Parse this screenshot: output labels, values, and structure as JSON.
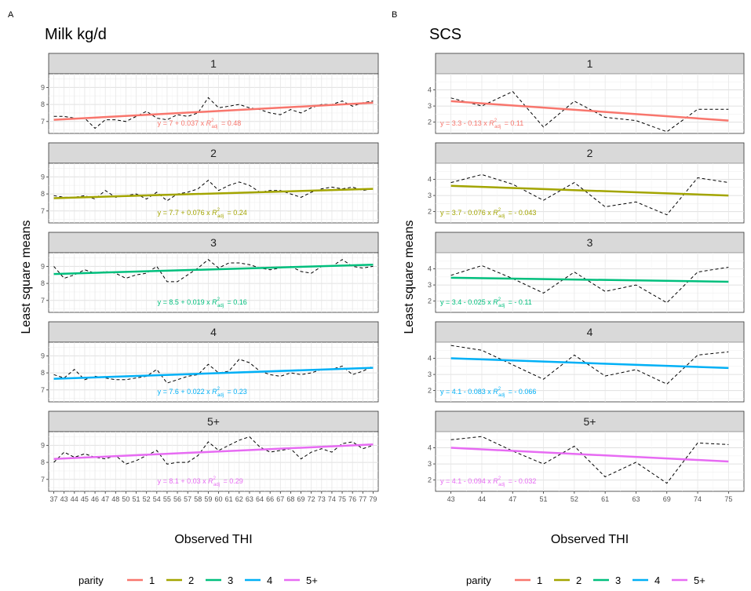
{
  "chart_data": [
    {
      "type": "line",
      "panel_label": "A",
      "title": "Milk kg/d",
      "xlabel": "Observed THI",
      "ylabel": "Least square means",
      "x_categories": [
        "37",
        "43",
        "44",
        "45",
        "46",
        "47",
        "48",
        "50",
        "51",
        "52",
        "54",
        "55",
        "56",
        "57",
        "58",
        "59",
        "60",
        "61",
        "62",
        "63",
        "64",
        "66",
        "67",
        "68",
        "69",
        "72",
        "73",
        "74",
        "75",
        "76",
        "77",
        "79"
      ],
      "yticks": [
        7,
        8,
        9
      ],
      "ylim": [
        6.3,
        9.8
      ],
      "grid": true,
      "facets": [
        {
          "strip": "1",
          "color": "#F8766D",
          "observed": [
            7.3,
            7.3,
            7.2,
            7.2,
            6.6,
            7.1,
            7.1,
            7.0,
            7.3,
            7.6,
            7.2,
            7.1,
            7.4,
            7.3,
            7.5,
            8.4,
            7.8,
            7.9,
            8.0,
            7.8,
            7.7,
            7.5,
            7.4,
            7.7,
            7.5,
            7.8,
            8.0,
            8.0,
            8.2,
            7.9,
            8.1,
            8.2
          ],
          "fit_start": 7.1,
          "fit_end": 8.1,
          "equation": "y = 7 + 0.037 x",
          "r2_label": "R",
          "r2_sub": "adj",
          "r2_sup": "2",
          "r2_value": "= 0.48"
        },
        {
          "strip": "2",
          "color": "#A3A500",
          "observed": [
            7.9,
            7.8,
            7.8,
            7.9,
            7.7,
            8.2,
            7.8,
            7.9,
            8.0,
            7.7,
            8.1,
            7.6,
            8.0,
            8.1,
            8.3,
            8.8,
            8.2,
            8.5,
            8.7,
            8.5,
            8.1,
            8.2,
            8.2,
            8.0,
            7.8,
            8.1,
            8.3,
            8.4,
            8.3,
            8.4,
            8.2,
            8.3
          ],
          "fit_start": 7.75,
          "fit_end": 8.3,
          "equation": "y = 7.7 + 0.076 x",
          "r2_label": "R",
          "r2_sub": "adj",
          "r2_sup": "2",
          "r2_value": "= 0.24"
        },
        {
          "strip": "3",
          "color": "#00BF7D",
          "observed": [
            9.0,
            8.3,
            8.5,
            8.8,
            8.6,
            8.7,
            8.6,
            8.3,
            8.5,
            8.6,
            9.0,
            8.1,
            8.1,
            8.5,
            8.9,
            9.4,
            8.9,
            9.2,
            9.2,
            9.1,
            8.9,
            8.8,
            8.9,
            9.0,
            8.7,
            8.6,
            9.0,
            9.0,
            9.4,
            9.0,
            8.9,
            9.0
          ],
          "fit_start": 8.55,
          "fit_end": 9.1,
          "equation": "y = 8.5 + 0.019 x",
          "r2_label": "R",
          "r2_sub": "adj",
          "r2_sup": "2",
          "r2_value": "= 0.16"
        },
        {
          "strip": "4",
          "color": "#00B0F6",
          "observed": [
            7.9,
            7.7,
            8.2,
            7.6,
            7.8,
            7.7,
            7.6,
            7.6,
            7.7,
            7.8,
            8.2,
            7.4,
            7.6,
            7.8,
            7.9,
            8.5,
            8.0,
            8.1,
            8.8,
            8.6,
            8.1,
            7.9,
            7.8,
            8.0,
            7.9,
            8.0,
            8.2,
            8.2,
            8.4,
            7.9,
            8.1,
            8.4
          ],
          "fit_start": 7.65,
          "fit_end": 8.3,
          "equation": "y = 7.6 + 0.022 x",
          "r2_label": "R",
          "r2_sub": "adj",
          "r2_sup": "2",
          "r2_value": "= 0.23"
        },
        {
          "strip": "5+",
          "color": "#E76BF3",
          "observed": [
            8.0,
            8.6,
            8.3,
            8.5,
            8.3,
            8.2,
            8.4,
            7.9,
            8.1,
            8.4,
            8.7,
            7.9,
            8.0,
            8.0,
            8.4,
            9.2,
            8.7,
            9.0,
            9.3,
            9.5,
            8.9,
            8.6,
            8.7,
            8.8,
            8.2,
            8.6,
            8.8,
            8.6,
            9.1,
            9.2,
            8.8,
            9.0
          ],
          "fit_start": 8.2,
          "fit_end": 9.05,
          "equation": "y = 8.1 + 0.03 x",
          "r2_label": "R",
          "r2_sub": "adj",
          "r2_sup": "2",
          "r2_value": "= 0.29"
        }
      ]
    },
    {
      "type": "line",
      "panel_label": "B",
      "title": "SCS",
      "xlabel": "Observed THI",
      "ylabel": "Least square means",
      "x_categories": [
        "43",
        "44",
        "47",
        "51",
        "52",
        "61",
        "63",
        "69",
        "74",
        "75"
      ],
      "yticks": [
        2,
        3,
        4
      ],
      "ylim": [
        1.3,
        5.0
      ],
      "grid": true,
      "facets": [
        {
          "strip": "1",
          "color": "#F8766D",
          "observed": [
            3.5,
            3.0,
            3.9,
            1.7,
            3.3,
            2.3,
            2.1,
            1.4,
            2.8,
            2.8
          ],
          "fit_start": 3.3,
          "fit_end": 2.1,
          "equation": "y = 3.3 - 0.13 x",
          "r2_label": "R",
          "r2_sub": "adj",
          "r2_sup": "2",
          "r2_value": "= 0.11"
        },
        {
          "strip": "2",
          "color": "#A3A500",
          "observed": [
            3.8,
            4.3,
            3.7,
            2.7,
            3.8,
            2.3,
            2.6,
            1.8,
            4.1,
            3.8
          ],
          "fit_start": 3.6,
          "fit_end": 3.0,
          "equation": "y = 3.7 - 0.076 x",
          "r2_label": "R",
          "r2_sub": "adj",
          "r2_sup": "2",
          "r2_value": "= - 0.043"
        },
        {
          "strip": "3",
          "color": "#00BF7D",
          "observed": [
            3.6,
            4.2,
            3.4,
            2.5,
            3.8,
            2.6,
            3.0,
            1.9,
            3.8,
            4.1
          ],
          "fit_start": 3.45,
          "fit_end": 3.2,
          "equation": "y = 3.4 - 0.025 x",
          "r2_label": "R",
          "r2_sub": "adj",
          "r2_sup": "2",
          "r2_value": "= - 0.11"
        },
        {
          "strip": "4",
          "color": "#00B0F6",
          "observed": [
            4.8,
            4.5,
            3.6,
            2.7,
            4.2,
            2.9,
            3.3,
            2.4,
            4.2,
            4.4
          ],
          "fit_start": 4.0,
          "fit_end": 3.4,
          "equation": "y = 4.1 - 0.083 x",
          "r2_label": "R",
          "r2_sub": "adj",
          "r2_sup": "2",
          "r2_value": "= - 0.066"
        },
        {
          "strip": "5+",
          "color": "#E76BF3",
          "observed": [
            4.5,
            4.7,
            3.8,
            3.0,
            4.1,
            2.2,
            3.1,
            1.8,
            4.3,
            4.2
          ],
          "fit_start": 4.0,
          "fit_end": 3.15,
          "equation": "y = 4.1 - 0.094 x",
          "r2_label": "R",
          "r2_sub": "adj",
          "r2_sup": "2",
          "r2_value": "= - 0.032"
        }
      ]
    }
  ],
  "legend": {
    "title": "parity",
    "placement": "bottom",
    "items": [
      {
        "label": "1",
        "color": "#F8766D"
      },
      {
        "label": "2",
        "color": "#A3A500"
      },
      {
        "label": "3",
        "color": "#00BF7D"
      },
      {
        "label": "4",
        "color": "#00B0F6"
      },
      {
        "label": "5+",
        "color": "#E76BF3"
      }
    ]
  }
}
